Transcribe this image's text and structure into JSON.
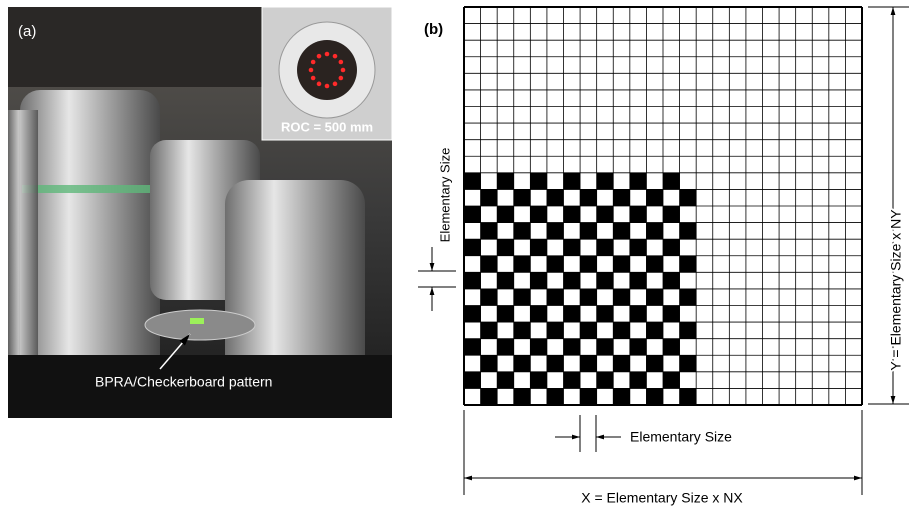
{
  "panel_a": {
    "label": "(a)",
    "inset_label": "ROC = 500 mm",
    "annotation": "BPRA/Checkerboard pattern"
  },
  "panel_b": {
    "label": "(b)",
    "left_dimension": "Elementary Size",
    "bottom_dimension": "Elementary Size",
    "x_dimension": "X = Elementary Size x NX",
    "y_dimension": "Y = Elementary Size x NY"
  }
}
